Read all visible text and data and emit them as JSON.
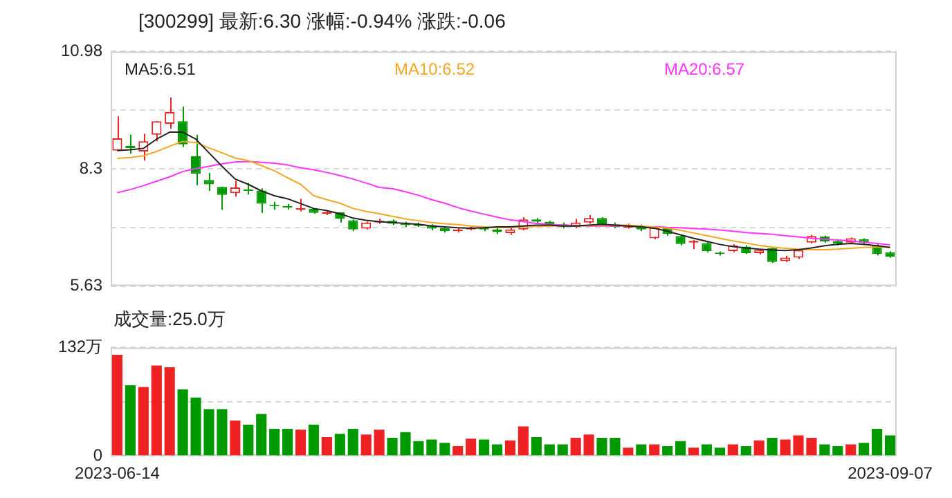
{
  "chart_data": [
    {
      "type": "candlestick",
      "title": "[300299]  最新:6.30  涨幅:-0.94%  涨跌:-0.06",
      "categories": [
        "2023-06-14",
        null,
        null,
        null,
        null,
        null,
        null,
        null,
        null,
        null,
        null,
        null,
        null,
        null,
        null,
        null,
        null,
        null,
        null,
        null,
        null,
        null,
        null,
        null,
        null,
        null,
        null,
        null,
        null,
        null,
        null,
        null,
        null,
        null,
        null,
        null,
        null,
        null,
        null,
        null,
        null,
        null,
        null,
        null,
        null,
        null,
        null,
        null,
        null,
        null,
        null,
        null,
        null,
        null,
        null,
        null,
        null,
        null,
        null,
        "2023-09-07"
      ],
      "ohlc": [
        [
          8.72,
          9.5,
          8.72,
          9.0
        ],
        [
          8.83,
          9.08,
          8.65,
          8.78
        ],
        [
          8.7,
          9.1,
          8.49,
          8.93
        ],
        [
          9.08,
          9.39,
          8.93,
          9.39
        ],
        [
          9.33,
          9.93,
          9.22,
          9.6
        ],
        [
          9.39,
          9.72,
          8.8,
          8.86
        ],
        [
          8.59,
          9.08,
          7.93,
          8.19
        ],
        [
          8.05,
          8.21,
          7.8,
          7.95
        ],
        [
          7.89,
          7.89,
          7.37,
          7.71
        ],
        [
          7.75,
          8.03,
          7.67,
          7.88
        ],
        [
          7.82,
          7.98,
          7.72,
          7.8
        ],
        [
          7.81,
          7.86,
          7.3,
          7.51
        ],
        [
          7.47,
          7.55,
          7.37,
          7.45
        ],
        [
          7.45,
          7.5,
          7.38,
          7.42
        ],
        [
          7.37,
          7.62,
          7.33,
          7.41
        ],
        [
          7.39,
          7.4,
          7.28,
          7.3
        ],
        [
          7.28,
          7.36,
          7.25,
          7.32
        ],
        [
          7.31,
          7.31,
          7.08,
          7.17
        ],
        [
          7.13,
          7.15,
          6.88,
          6.92
        ],
        [
          6.94,
          7.1,
          6.92,
          7.08
        ],
        [
          7.08,
          7.16,
          7.05,
          7.12
        ],
        [
          7.12,
          7.15,
          7.02,
          7.05
        ],
        [
          7.05,
          7.1,
          6.98,
          7.02
        ],
        [
          7.03,
          7.08,
          6.98,
          7.0
        ],
        [
          7.02,
          7.04,
          6.9,
          6.94
        ],
        [
          6.95,
          6.98,
          6.85,
          6.88
        ],
        [
          6.88,
          6.96,
          6.85,
          6.92
        ],
        [
          6.92,
          7.0,
          6.9,
          6.96
        ],
        [
          6.96,
          6.99,
          6.88,
          6.92
        ],
        [
          6.92,
          6.95,
          6.82,
          6.86
        ],
        [
          6.84,
          6.95,
          6.8,
          6.92
        ],
        [
          6.92,
          7.2,
          6.9,
          7.15
        ],
        [
          7.15,
          7.18,
          7.05,
          7.1
        ],
        [
          7.1,
          7.12,
          7.0,
          7.04
        ],
        [
          7.04,
          7.08,
          6.95,
          6.98
        ],
        [
          6.98,
          7.16,
          6.95,
          7.08
        ],
        [
          7.08,
          7.25,
          7.05,
          7.18
        ],
        [
          7.18,
          7.2,
          7.0,
          7.04
        ],
        [
          7.04,
          7.08,
          6.95,
          6.98
        ],
        [
          6.96,
          7.05,
          6.94,
          7.0
        ],
        [
          7.0,
          7.03,
          6.88,
          6.92
        ],
        [
          6.72,
          6.99,
          6.7,
          6.97
        ],
        [
          6.95,
          6.98,
          6.78,
          6.82
        ],
        [
          6.77,
          6.8,
          6.56,
          6.59
        ],
        [
          6.62,
          6.68,
          6.47,
          6.66
        ],
        [
          6.61,
          6.64,
          6.4,
          6.43
        ],
        [
          6.38,
          6.42,
          6.32,
          6.36
        ],
        [
          6.43,
          6.58,
          6.4,
          6.56
        ],
        [
          6.53,
          6.56,
          6.36,
          6.38
        ],
        [
          6.38,
          6.48,
          6.35,
          6.45
        ],
        [
          6.49,
          6.52,
          6.16,
          6.18
        ],
        [
          6.2,
          6.32,
          6.18,
          6.28
        ],
        [
          6.28,
          6.48,
          6.25,
          6.45
        ],
        [
          6.62,
          6.8,
          6.6,
          6.77
        ],
        [
          6.76,
          6.78,
          6.62,
          6.65
        ],
        [
          6.65,
          6.68,
          6.56,
          6.6
        ],
        [
          6.62,
          6.74,
          6.6,
          6.72
        ],
        [
          6.7,
          6.72,
          6.58,
          6.62
        ],
        [
          6.56,
          6.6,
          6.33,
          6.36
        ],
        [
          6.4,
          6.42,
          6.28,
          6.3
        ]
      ],
      "series": [
        {
          "name": "MA5:6.51",
          "type": "line",
          "color": "#222222",
          "values": [
            8.72,
            8.74,
            8.77,
            8.98,
            9.14,
            9.14,
            8.98,
            8.67,
            8.36,
            8.07,
            7.95,
            7.8,
            7.69,
            7.62,
            7.51,
            7.4,
            7.35,
            7.28,
            7.18,
            7.13,
            7.1,
            7.08,
            7.06,
            7.04,
            7.0,
            6.98,
            6.96,
            6.95,
            6.96,
            6.98,
            6.98,
            7.0,
            7.02,
            7.02,
            7.0,
            7.0,
            7.02,
            7.04,
            7.02,
            7.0,
            6.98,
            6.95,
            6.88,
            6.8,
            6.72,
            6.65,
            6.58,
            6.53,
            6.5,
            6.47,
            6.45,
            6.44,
            6.46,
            6.5,
            6.55,
            6.58,
            6.6,
            6.58,
            6.55,
            6.51
          ]
        },
        {
          "name": "MA10:6.52",
          "type": "line",
          "color": "#f5a623",
          "values": [
            8.54,
            8.56,
            8.6,
            8.7,
            8.82,
            8.93,
            8.9,
            8.78,
            8.67,
            8.55,
            8.49,
            8.38,
            8.26,
            8.1,
            7.95,
            7.69,
            7.6,
            7.52,
            7.4,
            7.33,
            7.28,
            7.22,
            7.16,
            7.12,
            7.08,
            7.05,
            7.03,
            7.0,
            6.98,
            6.96,
            6.97,
            6.98,
            6.99,
            7.0,
            7.0,
            7.0,
            7.01,
            7.02,
            7.02,
            7.02,
            7.0,
            6.98,
            6.95,
            6.9,
            6.84,
            6.78,
            6.72,
            6.66,
            6.61,
            6.56,
            6.52,
            6.49,
            6.47,
            6.46,
            6.46,
            6.47,
            6.49,
            6.51,
            6.52,
            6.52
          ]
        },
        {
          "name": "MA20:6.57",
          "type": "line",
          "color": "#ff33ff",
          "values": [
            7.76,
            7.83,
            7.92,
            8.02,
            8.12,
            8.24,
            8.31,
            8.36,
            8.42,
            8.46,
            8.47,
            8.45,
            8.43,
            8.39,
            8.33,
            8.28,
            8.22,
            8.15,
            8.07,
            7.98,
            7.88,
            7.85,
            7.78,
            7.7,
            7.6,
            7.52,
            7.42,
            7.34,
            7.27,
            7.2,
            7.14,
            7.1,
            7.06,
            7.04,
            7.02,
            7.01,
            7.0,
            7.0,
            7.0,
            7.0,
            null,
            6.99,
            6.97,
            6.96,
            6.94,
            6.93,
            6.91,
            6.88,
            6.85,
            6.83,
            6.81,
            6.78,
            6.75,
            6.72,
            6.7,
            6.68,
            6.66,
            6.63,
            6.6,
            6.57
          ]
        }
      ],
      "ylim": [
        5.63,
        10.98
      ],
      "yticks": [
        5.63,
        {
          "value": 6.97,
          "label": null
        },
        8.3,
        {
          "value": 9.64,
          "label": null
        },
        10.98
      ],
      "grid": "y",
      "legend": "top",
      "marker": "none",
      "tick_labels": "y"
    },
    {
      "type": "bar",
      "title": "成交量:25.0万",
      "categories": [
        "2023-06-14",
        null,
        null,
        null,
        null,
        null,
        null,
        null,
        null,
        null,
        null,
        null,
        null,
        null,
        null,
        null,
        null,
        null,
        null,
        null,
        null,
        null,
        null,
        null,
        null,
        null,
        null,
        null,
        null,
        null,
        null,
        null,
        null,
        null,
        null,
        null,
        null,
        null,
        null,
        null,
        null,
        null,
        null,
        null,
        null,
        null,
        null,
        null,
        null,
        null,
        null,
        null,
        null,
        null,
        null,
        null,
        null,
        null,
        null,
        "2023-09-07"
      ],
      "values": [
        123,
        86,
        84,
        110,
        108,
        81,
        71,
        57,
        57,
        43,
        38,
        51,
        33,
        33,
        32,
        38,
        23,
        27,
        33,
        26,
        32,
        22,
        29,
        18,
        20,
        16,
        12,
        21,
        20,
        14,
        19,
        36,
        23,
        14,
        14,
        22,
        26,
        22,
        22,
        10,
        14,
        14,
        12,
        18,
        10,
        14,
        10,
        14,
        12,
        19,
        22,
        20,
        25,
        22,
        14,
        12,
        14,
        16,
        33,
        25
      ],
      "colors": [
        "#ee2222",
        "#009900",
        "#ee2222",
        "#ee2222",
        "#ee2222",
        "#009900",
        "#009900",
        "#009900",
        "#009900",
        "#ee2222",
        "#009900",
        "#009900",
        "#009900",
        "#009900",
        "#ee2222",
        "#009900",
        "#ee2222",
        "#009900",
        "#009900",
        "#ee2222",
        "#ee2222",
        "#009900",
        "#009900",
        "#009900",
        "#009900",
        "#009900",
        "#ee2222",
        "#ee2222",
        "#009900",
        "#009900",
        "#ee2222",
        "#ee2222",
        "#009900",
        "#009900",
        "#009900",
        "#ee2222",
        "#ee2222",
        "#009900",
        "#009900",
        "#ee2222",
        "#009900",
        "#ee2222",
        "#009900",
        "#009900",
        "#ee2222",
        "#009900",
        "#009900",
        "#ee2222",
        "#009900",
        "#ee2222",
        "#009900",
        "#ee2222",
        "#ee2222",
        "#ee2222",
        "#009900",
        "#009900",
        "#ee2222",
        "#009900",
        "#009900",
        "#009900"
      ],
      "ylim": [
        0,
        132
      ],
      "yticks": [
        0,
        {
          "value": 66,
          "label": null
        },
        {
          "value": 132,
          "label": "132万"
        }
      ],
      "grid": "y"
    }
  ]
}
